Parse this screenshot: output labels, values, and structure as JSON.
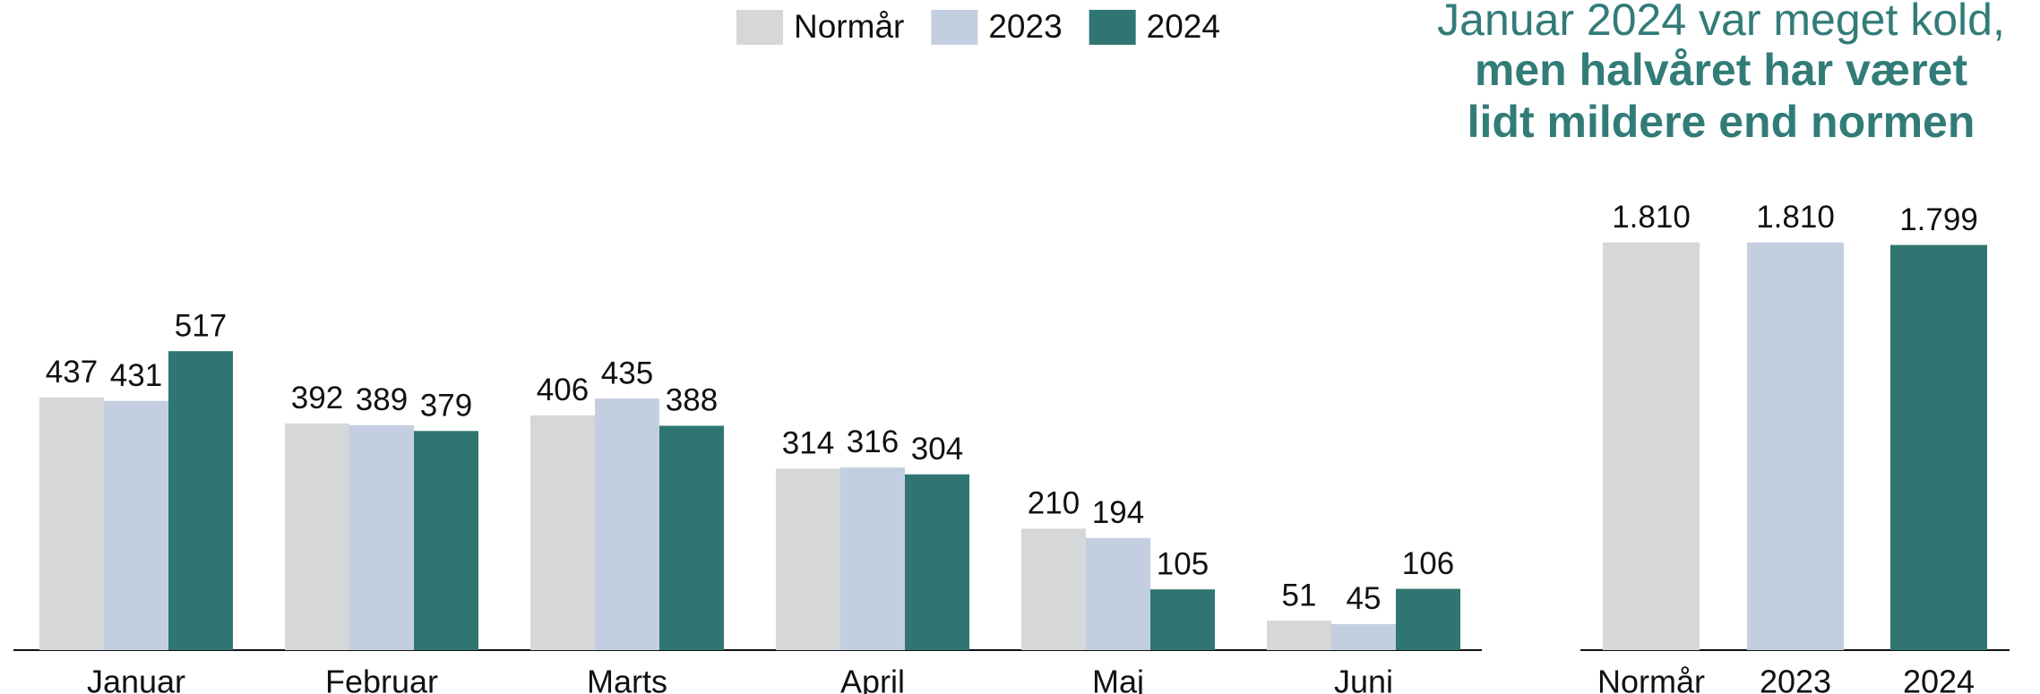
{
  "chart_data": [
    {
      "type": "bar",
      "title": [
        "Januar 2024 var meget kold,",
        "men halvåret har været",
        "lidt mildere end normen"
      ],
      "categories": [
        "Januar",
        "Februar",
        "Marts",
        "April",
        "Maj",
        "Juni"
      ],
      "series": [
        {
          "name": "Normår",
          "color": "#d6d7d9",
          "values": [
            437,
            392,
            406,
            314,
            210,
            51
          ]
        },
        {
          "name": "2023",
          "color": "#c3cfe1",
          "values": [
            431,
            389,
            435,
            316,
            194,
            45
          ]
        },
        {
          "name": "2024",
          "color": "#2f7672",
          "values": [
            517,
            379,
            388,
            304,
            105,
            106
          ]
        }
      ],
      "ylim": [
        0,
        700
      ]
    },
    {
      "type": "bar",
      "categories": [
        "Normår",
        "2023",
        "2024"
      ],
      "values": [
        1810,
        1810,
        1799
      ],
      "value_labels": [
        "1.810",
        "1.810",
        "1.799"
      ],
      "colors": [
        "#d6d7d9",
        "#c3cfe1",
        "#2f7672"
      ],
      "ylim": [
        0,
        2000
      ]
    }
  ]
}
